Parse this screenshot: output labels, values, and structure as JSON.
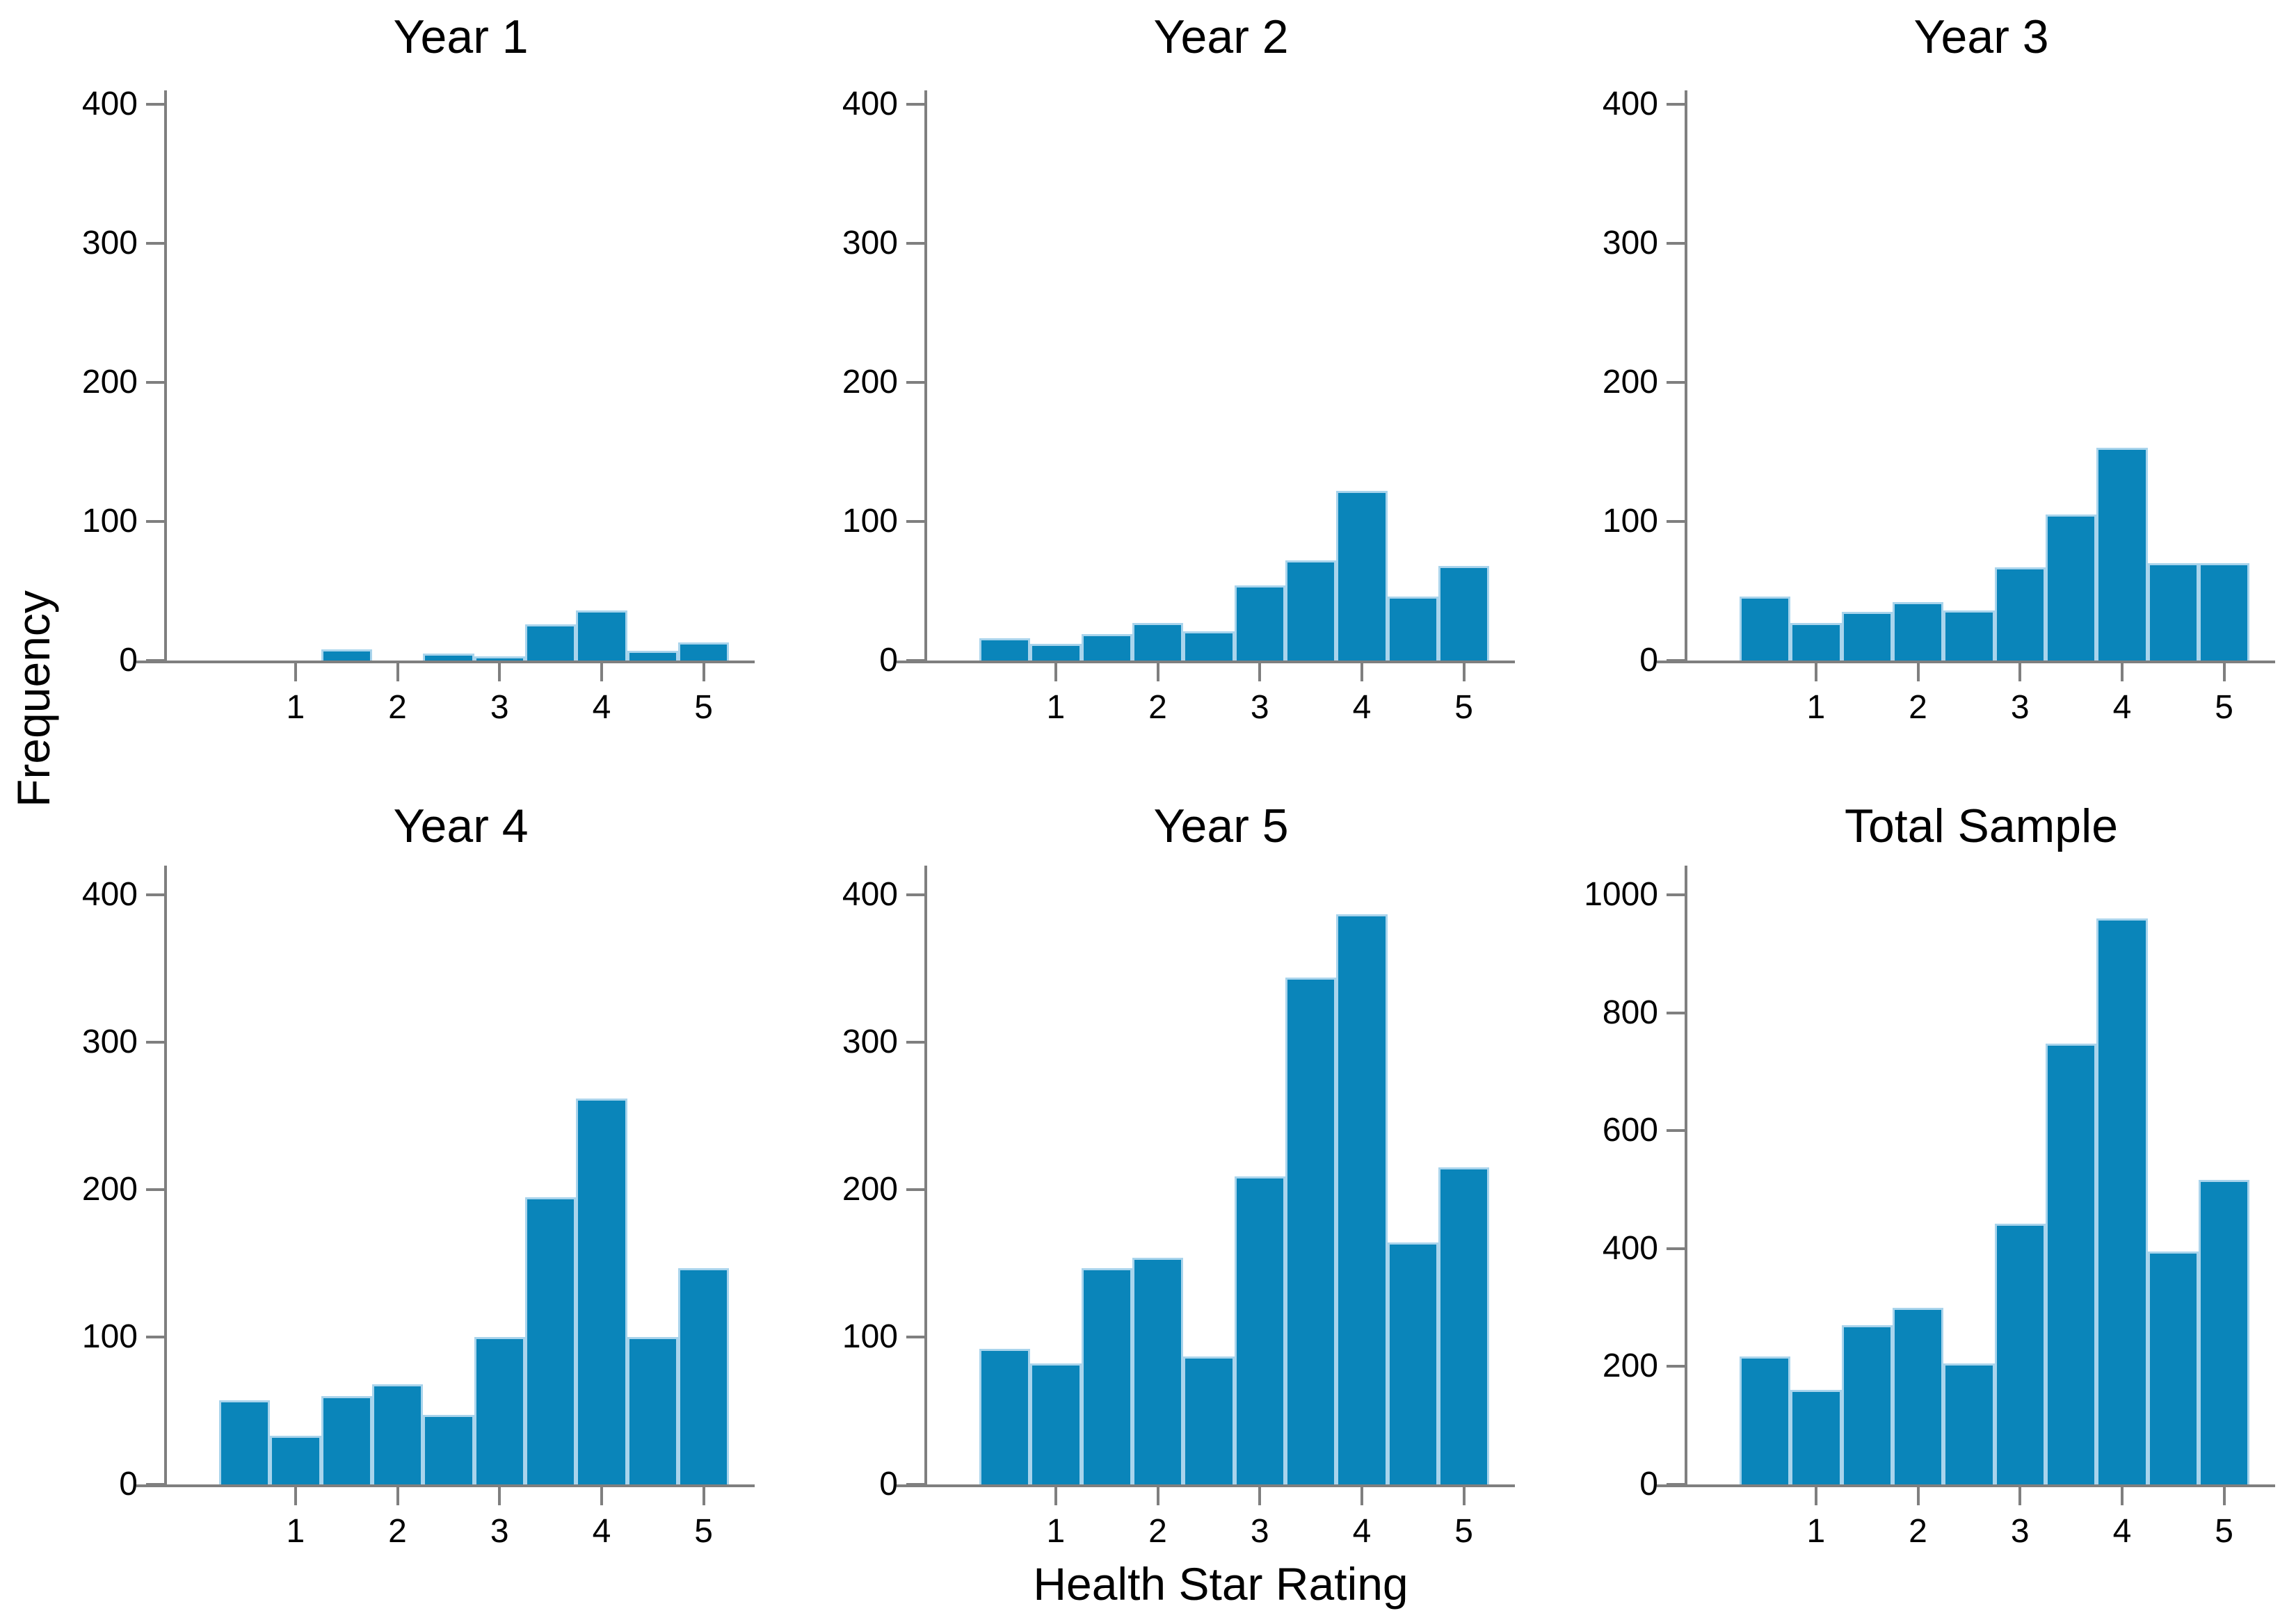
{
  "figure": {
    "ylabel": "Frequency",
    "xlabel": "Health Star Rating"
  },
  "style": {
    "bar_fill": "#0a85ba",
    "bar_edge": "#a9d4ec",
    "axis_color": "#7f7f7f",
    "text_color": "#000000",
    "background": "#ffffff"
  },
  "chart_data": [
    {
      "type": "bar",
      "title": "Year 1",
      "x": [
        0.5,
        1,
        1.5,
        2,
        2.5,
        3,
        3.5,
        4,
        4.5,
        5
      ],
      "bin_width": 0.5,
      "values": [
        0,
        0,
        8,
        0,
        5,
        3,
        26,
        36,
        7,
        13
      ],
      "ylim": [
        0,
        400
      ],
      "yticks": [
        0,
        100,
        200,
        300,
        400
      ],
      "xticks": [
        1,
        2,
        3,
        4,
        5
      ]
    },
    {
      "type": "bar",
      "title": "Year 2",
      "x": [
        0.5,
        1,
        1.5,
        2,
        2.5,
        3,
        3.5,
        4,
        4.5,
        5
      ],
      "bin_width": 0.5,
      "values": [
        16,
        12,
        19,
        27,
        21,
        54,
        72,
        122,
        46,
        68
      ],
      "ylim": [
        0,
        400
      ],
      "yticks": [
        0,
        100,
        200,
        300,
        400
      ],
      "xticks": [
        1,
        2,
        3,
        4,
        5
      ]
    },
    {
      "type": "bar",
      "title": "Year 3",
      "x": [
        0.5,
        1,
        1.5,
        2,
        2.5,
        3,
        3.5,
        4,
        4.5,
        5
      ],
      "bin_width": 0.5,
      "values": [
        46,
        27,
        35,
        42,
        36,
        67,
        105,
        153,
        70,
        70
      ],
      "ylim": [
        0,
        400
      ],
      "yticks": [
        0,
        100,
        200,
        300,
        400
      ],
      "xticks": [
        1,
        2,
        3,
        4,
        5
      ]
    },
    {
      "type": "bar",
      "title": "Year 4",
      "x": [
        0.5,
        1,
        1.5,
        2,
        2.5,
        3,
        3.5,
        4,
        4.5,
        5
      ],
      "bin_width": 0.5,
      "values": [
        57,
        33,
        60,
        68,
        47,
        100,
        195,
        262,
        100,
        147
      ],
      "ylim": [
        0,
        400
      ],
      "yticks": [
        0,
        100,
        200,
        300,
        400
      ],
      "xticks": [
        1,
        2,
        3,
        4,
        5
      ]
    },
    {
      "type": "bar",
      "title": "Year 5",
      "x": [
        0.5,
        1,
        1.5,
        2,
        2.5,
        3,
        3.5,
        4,
        4.5,
        5
      ],
      "bin_width": 0.5,
      "values": [
        92,
        82,
        147,
        154,
        87,
        209,
        344,
        387,
        164,
        215
      ],
      "ylim": [
        0,
        400
      ],
      "yticks": [
        0,
        100,
        200,
        300,
        400
      ],
      "xticks": [
        1,
        2,
        3,
        4,
        5
      ]
    },
    {
      "type": "bar",
      "title": "Total Sample",
      "x": [
        0.5,
        1,
        1.5,
        2,
        2.5,
        3,
        3.5,
        4,
        4.5,
        5
      ],
      "bin_width": 0.5,
      "values": [
        217,
        160,
        270,
        300,
        205,
        443,
        748,
        960,
        395,
        517
      ],
      "ylim": [
        0,
        1000
      ],
      "yticks": [
        0,
        200,
        400,
        600,
        800,
        1000
      ],
      "xticks": [
        1,
        2,
        3,
        4,
        5
      ]
    }
  ]
}
